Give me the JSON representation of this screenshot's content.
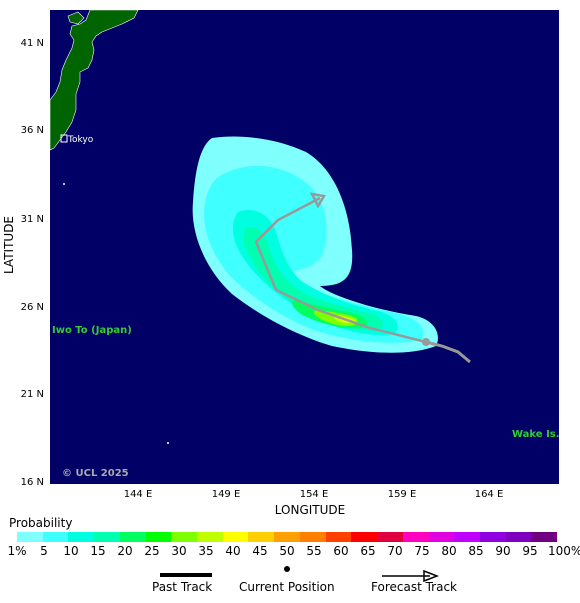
{
  "map": {
    "latitude_labels": [
      "41 N",
      "36 N",
      "31 N",
      "26 N",
      "21 N",
      "16 N"
    ],
    "longitude_labels": [
      "144 E",
      "149 E",
      "154 E",
      "159 E",
      "164 E"
    ],
    "x_axis_title": "LONGITUDE",
    "y_axis_title": "LATITUDE",
    "place_labels": {
      "tokyo": "Tokyo",
      "iwo_to": "Iwo To (Japan)",
      "wake": "Wake Is."
    },
    "copyright": "© UCL 2025",
    "colors": {
      "ocean": "#000066",
      "land": "#006400",
      "track": "#999999",
      "place_text": "#33cc33"
    }
  },
  "legend": {
    "title": "Probability",
    "labels": [
      "1%",
      "5",
      "10",
      "15",
      "20",
      "25",
      "30",
      "35",
      "40",
      "45",
      "50",
      "55",
      "60",
      "65",
      "70",
      "75",
      "80",
      "85",
      "90",
      "95",
      "100%"
    ],
    "colors": [
      "#80ffff",
      "#40ffff",
      "#00ffe0",
      "#00ffb0",
      "#00ff60",
      "#00ff00",
      "#80ff00",
      "#c0ff00",
      "#ffff00",
      "#ffd000",
      "#ffa000",
      "#ff8000",
      "#ff4000",
      "#ff0000",
      "#e00040",
      "#ff00c0",
      "#e000e0",
      "#c000ff",
      "#9000e0",
      "#8000c0",
      "#700080"
    ]
  },
  "track_key": {
    "past": "Past Track",
    "current": "Current Position",
    "forecast": "Forecast Track"
  }
}
